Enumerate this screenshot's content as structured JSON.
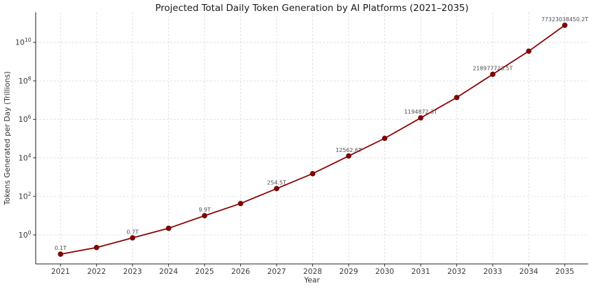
{
  "chart_data": {
    "type": "line",
    "title": "Projected Total Daily Token Generation by AI Platforms (2021–2035)",
    "xlabel": "Year",
    "ylabel": "Tokens Generated per Day (Trillions)",
    "yscale": "log",
    "grid": "dashed",
    "legend": "none",
    "x": [
      2021,
      2022,
      2023,
      2024,
      2025,
      2026,
      2027,
      2028,
      2029,
      2030,
      2031,
      2032,
      2033,
      2034,
      2035
    ],
    "values": [
      0.1,
      0.22,
      0.7,
      2.2,
      9.9,
      42.6,
      254.5,
      1517,
      12562.6,
      104000,
      1194872.3,
      13700000,
      218977723.5,
      3490000000,
      77323038450.2
    ],
    "point_labels": [
      "0.1T",
      "",
      "0.7T",
      "",
      "9.9T",
      "",
      "254.5T",
      "",
      "12562.6T",
      "",
      "1194872.3T",
      "",
      "218977723.5T",
      "",
      "77323038450.2T"
    ],
    "unlabeled_points_estimated": true,
    "xtick_labels": [
      "2021",
      "2022",
      "2023",
      "2024",
      "2025",
      "2026",
      "2027",
      "2028",
      "2029",
      "2030",
      "2031",
      "2032",
      "2033",
      "2034",
      "2035"
    ],
    "ytick_exponents": [
      0,
      2,
      4,
      6,
      8,
      10
    ],
    "ytick_base": "10",
    "xlim": [
      2020.31,
      2035.65
    ],
    "ylog_lim": [
      -1.51,
      11.56
    ],
    "colors": {
      "line": "#8B0000",
      "marker": "#8B0000",
      "marker_edge": "#5c0707",
      "grid": "#d9d9d9",
      "spine": "#2b2b2b",
      "tick_label": "#3a3a3a",
      "axis_label": "#333333",
      "title": "#1a1a1a",
      "point_label": "#4d4d4d",
      "background": "#ffffff"
    }
  }
}
